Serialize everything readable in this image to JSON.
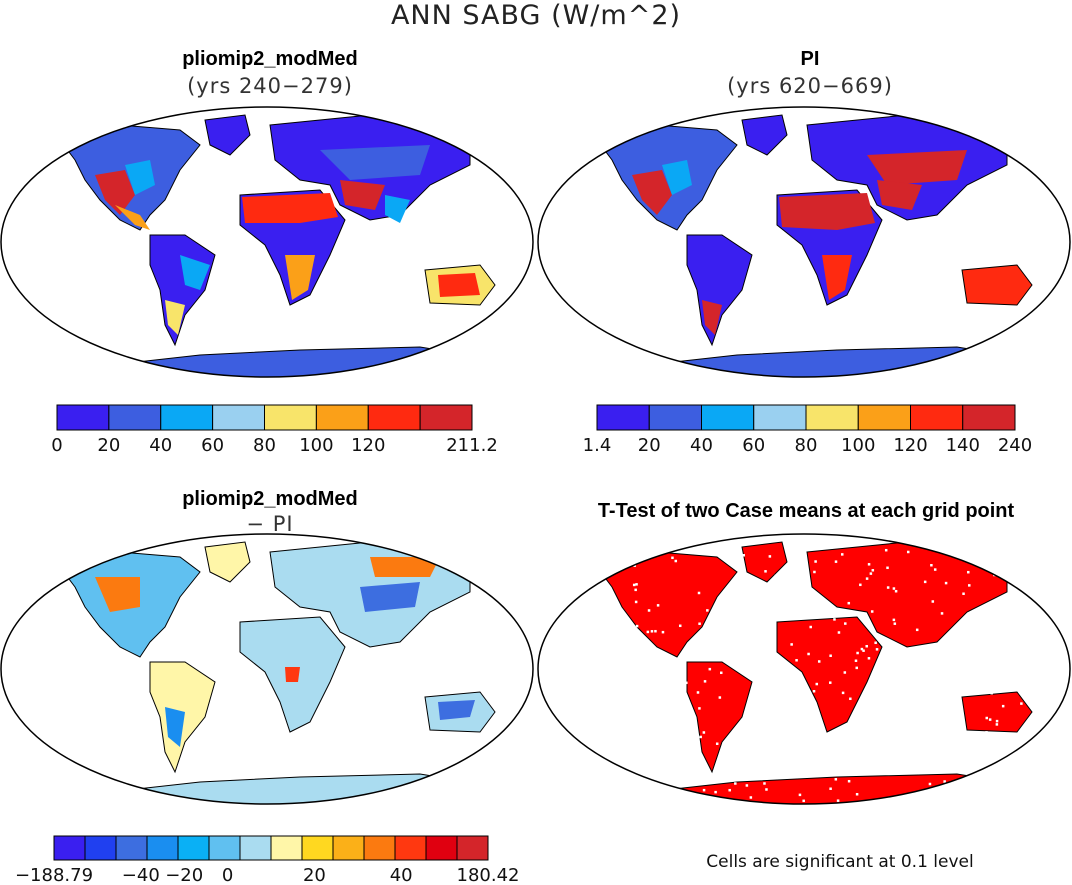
{
  "title": "ANN SABG (W/m^2)",
  "colors": {
    "blue_dark": "#3a1ff0",
    "blue": "#3d5ee0",
    "blue_light": "#0aa8f5",
    "sky": "#9ad0f0",
    "yellow": "#f8e46a",
    "orange": "#fba018",
    "red": "#ff2a10",
    "dark_red": "#d4252a",
    "ocean": "#ffffff",
    "coast": "#000000",
    "significant": "#ff0000"
  },
  "panels": [
    {
      "id": "modmed",
      "title": "pliomip2_modMed",
      "subtitle": "(yrs 240−279)",
      "colorbar": {
        "tick_labels": [
          "0",
          "20",
          "40",
          "60",
          "80",
          "100",
          "120",
          "",
          "211.2"
        ],
        "colors": [
          "#3a1ff0",
          "#3d5ee0",
          "#0aa8f5",
          "#9ad0f0",
          "#f8e46a",
          "#fba018",
          "#ff2a10",
          "#d4252a"
        ]
      }
    },
    {
      "id": "pi",
      "title": "PI",
      "subtitle": "(yrs 620−669)",
      "colorbar": {
        "tick_labels": [
          "1.4",
          "20",
          "40",
          "60",
          "80",
          "100",
          "120",
          "140",
          "240"
        ],
        "colors": [
          "#3a1ff0",
          "#3d5ee0",
          "#0aa8f5",
          "#9ad0f0",
          "#f8e46a",
          "#fba018",
          "#ff2a10",
          "#d4252a"
        ]
      }
    },
    {
      "id": "diff",
      "title": "pliomip2_modMed",
      "subtitle": "− PI",
      "colorbar": {
        "tick_labels": [
          "−188.79",
          "",
          "−40",
          "−20",
          "0",
          "",
          "20",
          "",
          "40",
          "",
          "180.42"
        ],
        "colors": [
          "#3a1ff0",
          "#2040f0",
          "#3d6ee0",
          "#1a8ef0",
          "#0ab0f5",
          "#60c0f0",
          "#aadcf0",
          "#fff6a8",
          "#ffd820",
          "#fbb018",
          "#fb7a10",
          "#ff3810",
          "#e00010",
          "#d4252a"
        ]
      }
    },
    {
      "id": "ttest",
      "title": "T-Test of two Case means at each grid point",
      "note": "Cells are significant at 0.1 level"
    }
  ]
}
